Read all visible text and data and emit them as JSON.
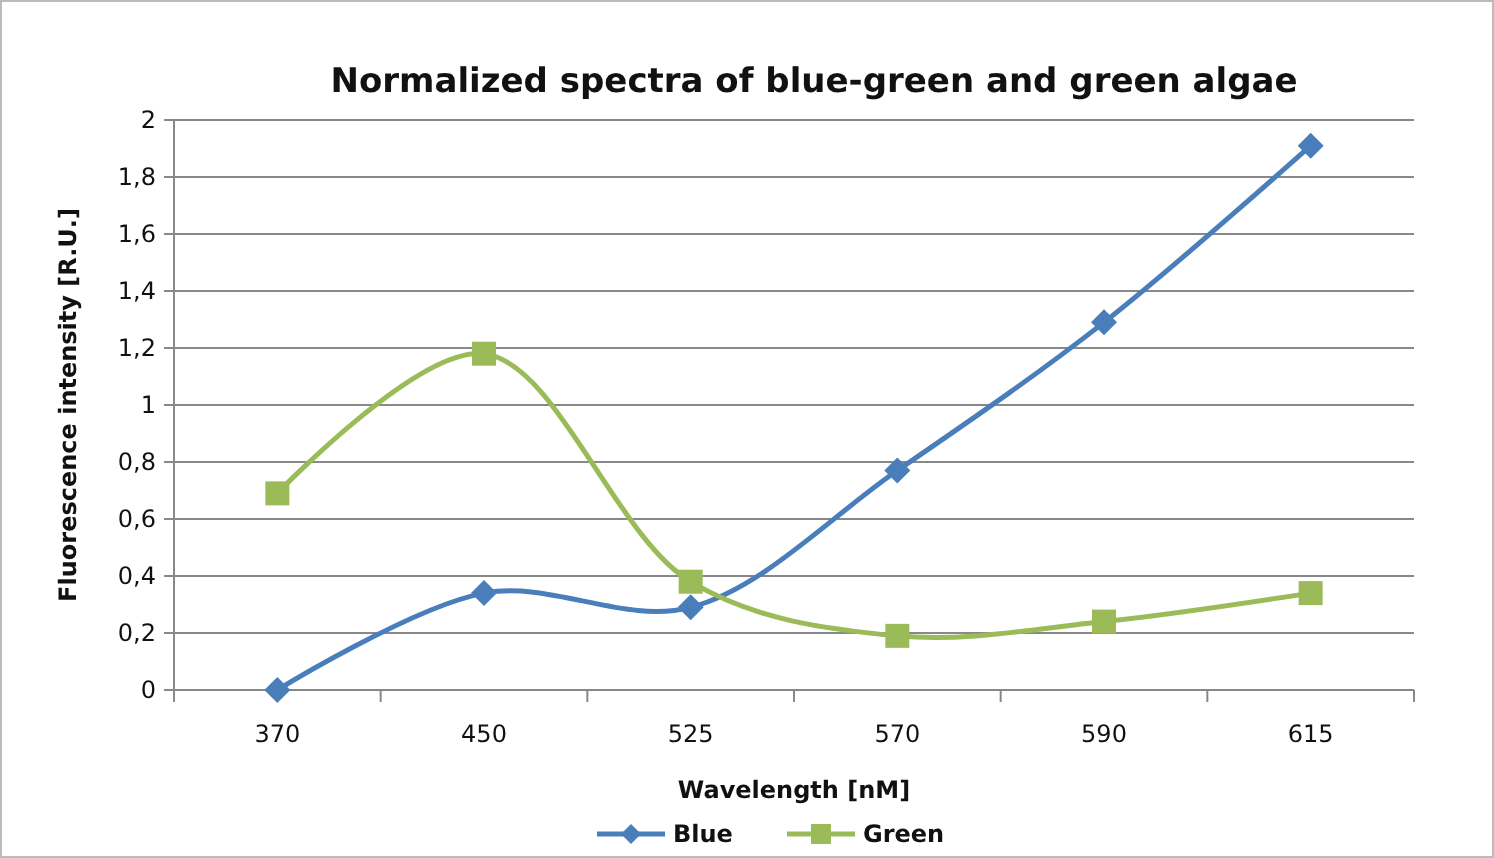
{
  "chart_data": {
    "type": "line",
    "title": "Normalized spectra of blue-green and green algae",
    "xlabel": "Wavelength [nM]",
    "ylabel": "Fluorescence intensity [R.U.]",
    "categories": [
      "370",
      "450",
      "525",
      "570",
      "590",
      "615"
    ],
    "series": [
      {
        "name": "Blue",
        "color": "#4a7ebb",
        "marker": "diamond",
        "values": [
          0,
          0.34,
          0.29,
          0.77,
          1.29,
          1.91
        ]
      },
      {
        "name": "Green",
        "color": "#9bbb59",
        "marker": "square",
        "values": [
          0.69,
          1.18,
          0.38,
          0.19,
          0.24,
          0.34
        ]
      }
    ],
    "ylim": [
      0,
      2
    ],
    "yticks": [
      0,
      {
        "value": 0.2,
        "label": "0,2"
      },
      {
        "value": 0.4,
        "label": "0,4"
      },
      {
        "value": 0.6,
        "label": "0,6"
      },
      {
        "value": 0.8,
        "label": "0,8"
      },
      1,
      {
        "value": 1.2,
        "label": "1,2"
      },
      {
        "value": 1.4,
        "label": "1,4"
      },
      {
        "value": 1.6,
        "label": "1,6"
      },
      {
        "value": 1.8,
        "label": "1,8"
      },
      2
    ],
    "grid": "y",
    "legend": "bottom",
    "line_style": "solid"
  }
}
